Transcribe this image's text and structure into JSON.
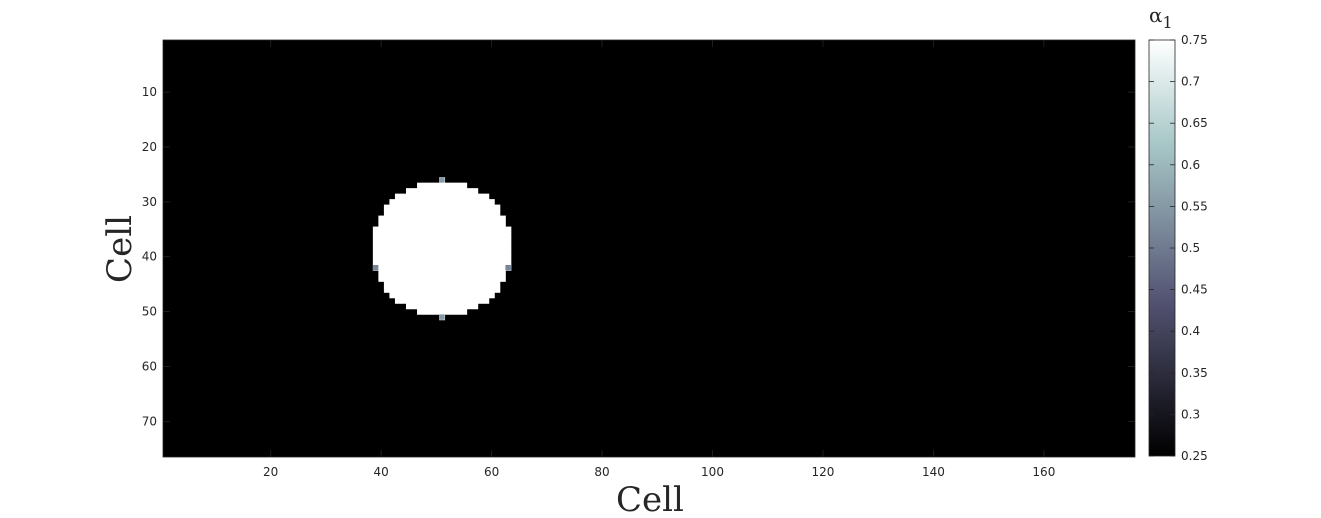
{
  "chart_data": {
    "type": "heatmap",
    "xlabel": "Cell",
    "ylabel": "Cell",
    "xlim": [
      1,
      176
    ],
    "ylim": [
      1,
      76
    ],
    "y_direction": "reversed",
    "x_ticks": [
      20,
      40,
      60,
      80,
      100,
      120,
      140,
      160
    ],
    "y_ticks": [
      10,
      20,
      30,
      40,
      50,
      60,
      70
    ],
    "colormap": "bone",
    "colorbar": {
      "title_symbol": "α",
      "title_subscript": "1",
      "min": 0.25,
      "max": 0.75,
      "ticks": [
        "0.25",
        "0.3",
        "0.35",
        "0.4",
        "0.45",
        "0.5",
        "0.55",
        "0.6",
        "0.65",
        "0.7",
        "0.75"
      ]
    },
    "background_value": 0.25,
    "features": [
      {
        "shape": "circle",
        "center_x": 51,
        "center_y": 38.5,
        "radius": 12.5,
        "value": 0.75
      }
    ],
    "interface_cells": [
      {
        "x": 51,
        "y": 26,
        "value": 0.55
      },
      {
        "x": 51,
        "y": 51,
        "value": 0.55
      },
      {
        "x": 39,
        "y": 42,
        "value": 0.52
      },
      {
        "x": 63,
        "y": 42,
        "value": 0.52
      }
    ]
  }
}
